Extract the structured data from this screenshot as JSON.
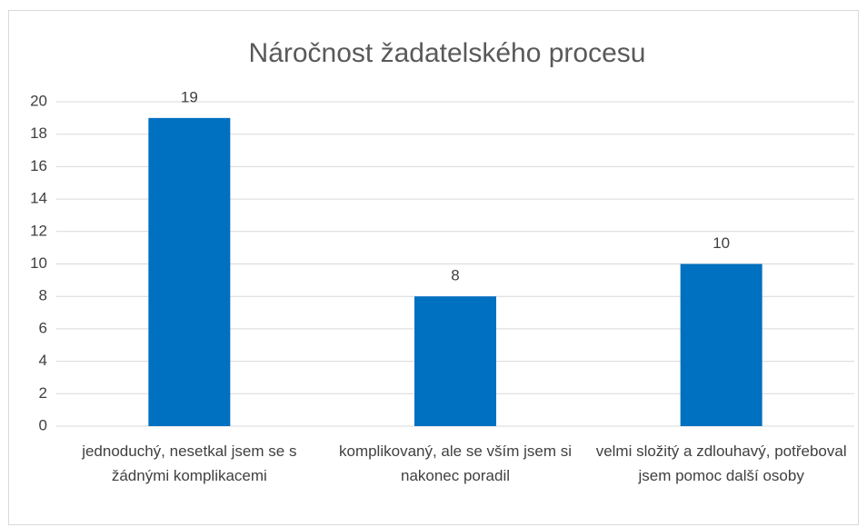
{
  "chart_data": {
    "type": "bar",
    "title": "Náročnost žadatelského procesu",
    "categories": [
      "jednoduchý, nesetkal jsem se s žádnými komplikacemi",
      "komplikovaný, ale se vším jsem si nakonec poradil",
      "velmi složitý a zdlouhavý, potřeboval jsem pomoc další osoby"
    ],
    "values": [
      19,
      8,
      10
    ],
    "color": "#0070c0",
    "ylim": [
      0,
      20
    ],
    "yticks": [
      0,
      2,
      4,
      6,
      8,
      10,
      12,
      14,
      16,
      18,
      20
    ],
    "grid": true
  }
}
